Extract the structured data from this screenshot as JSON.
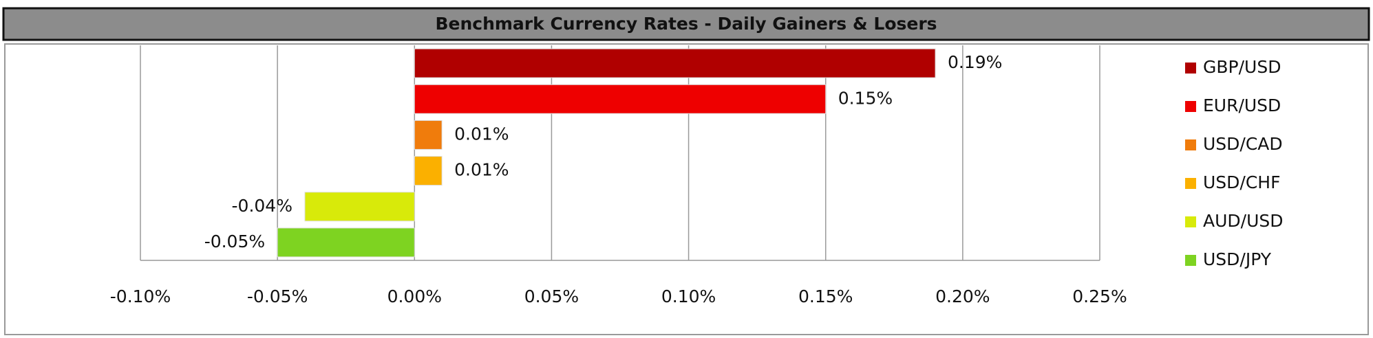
{
  "chart_data": {
    "type": "bar",
    "orientation": "horizontal",
    "title": "Benchmark Currency Rates - Daily Gainers & Losers",
    "categories": [
      "GBP/USD",
      "EUR/USD",
      "USD/CAD",
      "USD/CHF",
      "AUD/USD",
      "USD/JPY"
    ],
    "values": [
      0.19,
      0.15,
      0.01,
      0.01,
      -0.04,
      -0.05
    ],
    "value_labels": [
      "0.19%",
      "0.15%",
      "0.01%",
      "0.01%",
      "-0.04%",
      "-0.05%"
    ],
    "colors": [
      "#b00000",
      "#ee0000",
      "#f07c0c",
      "#fbb000",
      "#d8ea0a",
      "#7ed321"
    ],
    "xlim": [
      -0.1,
      0.25
    ],
    "xticks": [
      {
        "value": -0.1,
        "label": "-0.10%"
      },
      {
        "value": -0.05,
        "label": "-0.05%"
      },
      {
        "value": 0,
        "label": "0.00%"
      },
      {
        "value": 0.05,
        "label": "0.05%"
      },
      {
        "value": 0.1,
        "label": "0.10%"
      },
      {
        "value": 0.15,
        "label": "0.15%"
      },
      {
        "value": 0.2,
        "label": "0.20%"
      },
      {
        "value": 0.25,
        "label": "0.25%"
      }
    ],
    "grid": true,
    "legend": "right"
  }
}
